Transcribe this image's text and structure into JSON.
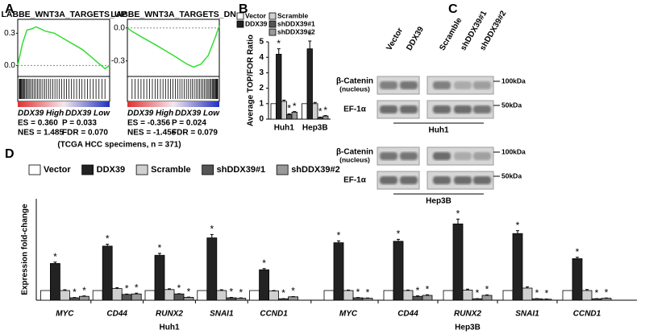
{
  "panel_labels": [
    "A",
    "B",
    "C",
    "D"
  ],
  "panel_A_note": "(TCGA HCC specimens, n = 371)",
  "chart_data": [
    {
      "type": "line",
      "title": "LABBE_WNT3A_TARGETS_UP",
      "x": [
        0,
        5,
        10,
        15,
        20,
        30,
        40,
        50,
        60,
        70,
        80,
        88,
        95,
        100
      ],
      "values": [
        0,
        0.2,
        0.33,
        0.34,
        0.36,
        0.32,
        0.3,
        0.25,
        0.2,
        0.15,
        0.08,
        0.02,
        -0.03,
        0
      ],
      "color": "#33dd33",
      "xlim": [
        0,
        100
      ],
      "ylim": [
        -0.08,
        0.4
      ],
      "yticks": [
        0.3,
        {
          "value": 0,
          "label": "0.0"
        }
      ],
      "high_label": "DDX39 High",
      "low_label": "DDX39 Low",
      "stats": [
        "ES = 0.360",
        "P = 0.033",
        "NES = 1.485",
        "FDR = 0.070"
      ]
    },
    {
      "type": "line",
      "title": "LABBE_WNT3A_TARGETS_DN",
      "x": [
        0,
        5,
        15,
        30,
        50,
        65,
        72,
        80,
        88,
        95,
        100
      ],
      "values": [
        0,
        -0.03,
        -0.08,
        -0.15,
        -0.25,
        -0.33,
        -0.356,
        -0.33,
        -0.25,
        -0.1,
        0.02
      ],
      "color": "#33dd33",
      "xlim": [
        0,
        100
      ],
      "ylim": [
        -0.42,
        0.05
      ],
      "yticks": [
        {
          "value": 0,
          "label": "0.0"
        },
        -0.3
      ],
      "high_label": "DDX39 High",
      "low_label": "DDX39 Low",
      "stats": [
        "ES = -0.356",
        "P = 0.024",
        "NES = -1.456",
        "FDR = 0.079"
      ]
    },
    {
      "type": "bar",
      "y_label": "Average TOP/FOR Ratio",
      "categories": [
        "Huh1",
        "Hep3B"
      ],
      "ylim": [
        0,
        5
      ],
      "yticks": [
        0,
        1,
        2,
        3,
        4,
        5
      ],
      "series": [
        {
          "name": "Vector",
          "color": "#ffffff",
          "values": [
            1,
            1
          ]
        },
        {
          "name": "DDX39",
          "color": "#222222",
          "values": [
            4.2,
            4.55
          ],
          "errors": [
            0.35,
            0.5
          ],
          "annotations": [
            "*",
            "*"
          ]
        },
        {
          "name": "Scramble",
          "color": "#d0d0d0",
          "values": [
            1.15,
            1.0
          ],
          "errors": [
            0.08,
            0.08
          ]
        },
        {
          "name": "shDDX39#1",
          "color": "#555555",
          "values": [
            0.3,
            0.1
          ],
          "errors": [
            0.04,
            0.03
          ],
          "annotations": [
            "*",
            "*"
          ]
        },
        {
          "name": "shDDX39#2",
          "color": "#999999",
          "values": [
            0.45,
            0.2
          ],
          "errors": [
            0.04,
            0.03
          ],
          "annotations": [
            "*",
            "*"
          ]
        }
      ]
    },
    {
      "type": "bar",
      "y_label": "Expression fold-change",
      "categories": [
        "MYC",
        "CD44",
        "RUNX2",
        "SNAI1",
        "CCND1",
        "MYC",
        "CD44",
        "RUNX2",
        "SNAI1",
        "CCND1"
      ],
      "group_labels": [
        "Huh1",
        "Hep3B"
      ],
      "ylim": [
        0,
        10.5
      ],
      "series": [
        {
          "name": "Vector",
          "color": "#ffffff",
          "values": [
            1,
            1,
            1,
            1,
            1,
            1,
            1,
            1,
            1,
            1
          ]
        },
        {
          "name": "DDX39",
          "color": "#222222",
          "values": [
            3.8,
            5.6,
            4.65,
            6.45,
            3.15,
            5.95,
            6.1,
            7.9,
            6.9,
            4.3
          ],
          "errors": [
            0.15,
            0.2,
            0.2,
            0.35,
            0.12,
            0.2,
            0.2,
            0.5,
            0.3,
            0.15
          ],
          "annotations": [
            "*",
            "*",
            "*",
            "*",
            "*",
            "*",
            "*",
            "*",
            "*",
            "*"
          ]
        },
        {
          "name": "Scramble",
          "color": "#d0d0d0",
          "values": [
            1.0,
            1.2,
            1.1,
            1.0,
            0.95,
            1.0,
            1.0,
            1.05,
            1.25,
            1.0
          ],
          "errors": [
            0.08,
            0.1,
            0.08,
            0.08,
            0.05,
            0.05,
            0.05,
            0.1,
            0.12,
            0.1
          ]
        },
        {
          "name": "shDDX39#1",
          "color": "#555555",
          "values": [
            0.25,
            0.6,
            0.65,
            0.25,
            0.15,
            0.25,
            0.4,
            0.15,
            0.15,
            0.15
          ],
          "errors": [
            0.03,
            0.04,
            0.03,
            0.04,
            0.02,
            0.03,
            0.05,
            0.02,
            0.02,
            0.02
          ],
          "annotations": [
            "*",
            "*",
            "*",
            "*",
            "*",
            "*",
            "*",
            "*",
            "*",
            "*"
          ]
        },
        {
          "name": "shDDX39#2",
          "color": "#999999",
          "values": [
            0.4,
            0.65,
            0.3,
            0.2,
            0.35,
            0.2,
            0.5,
            0.5,
            0.1,
            0.2
          ],
          "errors": [
            0.05,
            0.08,
            0.02,
            0.04,
            0.03,
            0.03,
            0.06,
            0.05,
            0.02,
            0.03
          ],
          "annotations": [
            "*",
            "*",
            "*",
            "*",
            "*",
            "*",
            "*",
            "*",
            "*",
            "*"
          ]
        }
      ]
    }
  ],
  "blot": {
    "lanes": [
      "Vector",
      "DDX39",
      "Scramble",
      "shDDX39#1",
      "shDDX39#2"
    ],
    "sections": [
      {
        "cell_line": "Huh1",
        "rows": [
          {
            "label": "β-Catenin",
            "sublabel": "(nucleus)",
            "marker": "100kDa"
          },
          {
            "label": "EF-1α",
            "marker": "50kDa"
          }
        ]
      },
      {
        "cell_line": "Hep3B",
        "rows": [
          {
            "label": "β-Catenin",
            "sublabel": "(nucleus)",
            "marker": "100kDa"
          },
          {
            "label": "EF-1α",
            "marker": "50kDa"
          }
        ]
      }
    ]
  }
}
